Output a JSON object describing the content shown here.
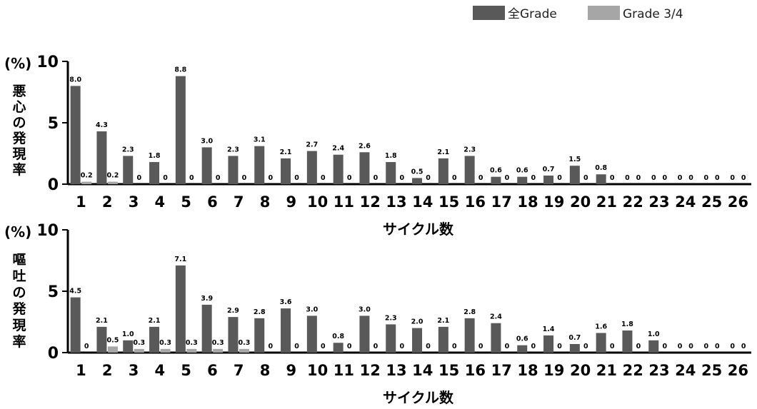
{
  "legend": {
    "position": "top-right",
    "items": [
      {
        "label": "全Grade",
        "color": "#595959"
      },
      {
        "label": "Grade 3/4",
        "color": "#a6a6a6"
      }
    ]
  },
  "chart_data": [
    {
      "type": "bar",
      "unit_label": "(%)",
      "ylabel": "悪心の発現率",
      "xlabel": "サイクル数",
      "ylim": [
        0,
        10
      ],
      "yticks": [
        0,
        5,
        10
      ],
      "categories": [
        "1",
        "2",
        "3",
        "4",
        "5",
        "6",
        "7",
        "8",
        "9",
        "10",
        "11",
        "12",
        "13",
        "14",
        "15",
        "16",
        "17",
        "18",
        "19",
        "20",
        "21",
        "22",
        "23",
        "24",
        "25",
        "26"
      ],
      "series": [
        {
          "name": "全Grade",
          "color": "#595959",
          "values": [
            8.0,
            4.3,
            2.3,
            1.8,
            8.8,
            3.0,
            2.3,
            3.1,
            2.1,
            2.7,
            2.4,
            2.6,
            1.8,
            0.5,
            2.1,
            2.3,
            0.6,
            0.6,
            0.7,
            1.5,
            0.8,
            0,
            0,
            0,
            0,
            0
          ],
          "labels": [
            "8.0",
            "4.3",
            "2.3",
            "1.8",
            "8.8",
            "3.0",
            "2.3",
            "3.1",
            "2.1",
            "2.7",
            "2.4",
            "2.6",
            "1.8",
            "0.5",
            "2.1",
            "2.3",
            "0.6",
            "0.6",
            "0.7",
            "1.5",
            "0.8",
            "0",
            "0",
            "0",
            "0",
            "0"
          ]
        },
        {
          "name": "Grade 3/4",
          "color": "#a6a6a6",
          "values": [
            0.2,
            0.2,
            0,
            0,
            0,
            0,
            0,
            0,
            0,
            0,
            0,
            0,
            0,
            0,
            0,
            0,
            0,
            0,
            0,
            0,
            0,
            0,
            0,
            0,
            0,
            0
          ],
          "labels": [
            "0.2",
            "0.2",
            "0",
            "0",
            "0",
            "0",
            "0",
            "0",
            "0",
            "0",
            "0",
            "0",
            "0",
            "0",
            "0",
            "0",
            "0",
            "0",
            "0",
            "0",
            "0",
            "0",
            "0",
            "0",
            "0",
            "0"
          ]
        }
      ]
    },
    {
      "type": "bar",
      "unit_label": "(%)",
      "ylabel": "嘔吐の発現率",
      "xlabel": "サイクル数",
      "ylim": [
        0,
        10
      ],
      "yticks": [
        0,
        5,
        10
      ],
      "categories": [
        "1",
        "2",
        "3",
        "4",
        "5",
        "6",
        "7",
        "8",
        "9",
        "10",
        "11",
        "12",
        "13",
        "14",
        "15",
        "16",
        "17",
        "18",
        "19",
        "20",
        "21",
        "22",
        "23",
        "24",
        "25",
        "26"
      ],
      "series": [
        {
          "name": "全Grade",
          "color": "#595959",
          "values": [
            4.5,
            2.1,
            1.0,
            2.1,
            7.1,
            3.9,
            2.9,
            2.8,
            3.6,
            3.0,
            0.8,
            3.0,
            2.3,
            2.0,
            2.1,
            2.8,
            2.4,
            0.6,
            1.4,
            0.7,
            1.6,
            1.8,
            1.0,
            0,
            0,
            0
          ],
          "labels": [
            "4.5",
            "2.1",
            "1.0",
            "2.1",
            "7.1",
            "3.9",
            "2.9",
            "2.8",
            "3.6",
            "3.0",
            "0.8",
            "3.0",
            "2.3",
            "2.0",
            "2.1",
            "2.8",
            "2.4",
            "0.6",
            "1.4",
            "0.7",
            "1.6",
            "1.8",
            "1.0",
            "0",
            "0",
            "0"
          ]
        },
        {
          "name": "Grade 3/4",
          "color": "#a6a6a6",
          "values": [
            0,
            0.5,
            0.3,
            0.3,
            0.3,
            0.3,
            0.3,
            0,
            0,
            0,
            0,
            0,
            0,
            0,
            0,
            0,
            0,
            0,
            0,
            0,
            0,
            0,
            0,
            0,
            0,
            0
          ],
          "labels": [
            "0",
            "0.5",
            "0.3",
            "0.3",
            "0.3",
            "0.3",
            "0.3",
            "0",
            "0",
            "0",
            "0",
            "0",
            "0",
            "0",
            "0",
            "0",
            "0",
            "0",
            "0",
            "0",
            "0",
            "0",
            "0",
            "0",
            "0",
            "0"
          ]
        }
      ]
    }
  ]
}
